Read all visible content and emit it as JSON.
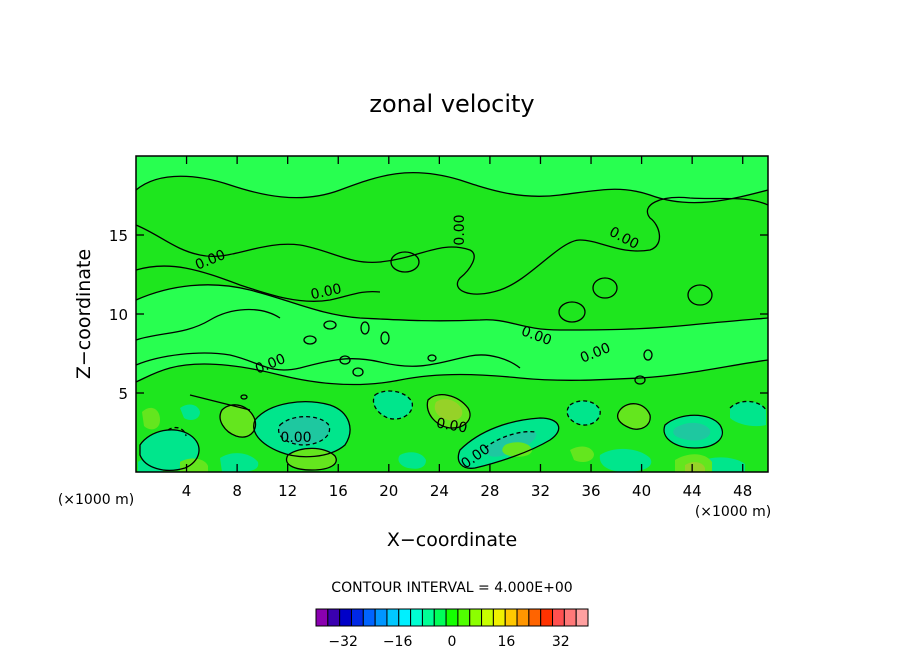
{
  "chart_data": {
    "type": "contour",
    "title": "zonal velocity",
    "xlabel": "X−coordinate",
    "ylabel": "Z−coordinate",
    "x_unit_label": "(×1000 m)",
    "y_unit_label": "(×1000 m)",
    "xlim": [
      0,
      50
    ],
    "ylim": [
      0,
      20
    ],
    "xticks": [
      4,
      8,
      12,
      16,
      20,
      24,
      28,
      32,
      36,
      40,
      44,
      48
    ],
    "yticks": [
      5,
      10,
      15
    ],
    "contour_interval_text": "CONTOUR INTERVAL = 4.000E+00",
    "contour_labels": [
      "0.00",
      "0.00",
      "0.00",
      "0.00",
      "0.00",
      "0.00",
      "0.00",
      "0.00",
      "0.00",
      "0.00"
    ],
    "colorbar": {
      "ticks": [
        -32,
        -16,
        0,
        16,
        32
      ],
      "tick_labels": [
        "−32",
        "−16",
        "0",
        "16",
        "32"
      ],
      "range": [
        -40,
        40
      ],
      "colors": [
        "#8a00b0",
        "#3a00b0",
        "#0000c8",
        "#0028e6",
        "#0064ff",
        "#0096ff",
        "#00c8ff",
        "#00f0ff",
        "#00ffd2",
        "#00ff96",
        "#00ff5a",
        "#14ff00",
        "#50ff00",
        "#8cff00",
        "#c8ff00",
        "#f0f000",
        "#ffc800",
        "#ff9600",
        "#ff6400",
        "#ff3200",
        "#ff5050",
        "#ff7878",
        "#ffa0a0"
      ]
    },
    "field_colors": {
      "background": "#1ee61e",
      "weak_negative": "#28ff50",
      "negative": "#00e68c",
      "strong_negative": "#1ec8a0",
      "positive": "#64e61e",
      "strong_positive": "#96d228"
    },
    "grid": false
  }
}
